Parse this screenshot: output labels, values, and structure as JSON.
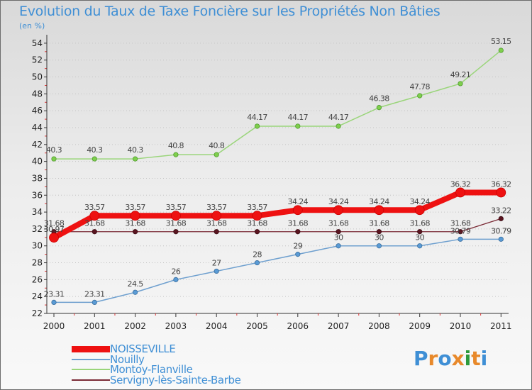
{
  "header": {
    "title": "Evolution du Taux de Taxe Foncière sur les Propriétés Non Bâties",
    "unit": "(en %)"
  },
  "logo": {
    "text": "Proxiti",
    "colors": [
      "#3f8fd5",
      "#e8892b",
      "#3f8fd5",
      "#e8892b",
      "#2e9a3c",
      "#e8892b",
      "#3f8fd5"
    ]
  },
  "chart_data": {
    "type": "line",
    "title": "Evolution du Taux de Taxe Foncière sur les Propriétés Non Bâties",
    "ylabel": "(en %)",
    "xlabel": "",
    "x": [
      "2000",
      "2001",
      "2002",
      "2003",
      "2004",
      "2005",
      "2006",
      "2007",
      "2008",
      "2009",
      "2010",
      "2011"
    ],
    "ylim": [
      22,
      55
    ],
    "yticks": [
      22,
      24,
      26,
      28,
      30,
      32,
      34,
      36,
      38,
      40,
      42,
      44,
      46,
      48,
      50,
      52,
      54
    ],
    "grid": "horizontal-dotted",
    "legend_position": "bottom-left",
    "series": [
      {
        "name": "NOISSEVILLE",
        "color": "#ee1111",
        "values": [
          30.97,
          33.57,
          33.57,
          33.57,
          33.57,
          33.57,
          34.24,
          34.24,
          34.24,
          34.24,
          36.32,
          36.32
        ],
        "labels": [
          "30.97",
          "33.57",
          "33.57",
          "33.57",
          "33.57",
          "33.57",
          "34.24",
          "34.24",
          "34.24",
          "34.24",
          "36.32",
          "36.32"
        ]
      },
      {
        "name": "Nouilly",
        "color": "#6fa0cf",
        "values": [
          23.31,
          23.31,
          24.5,
          26,
          27,
          28,
          29,
          30,
          30,
          30,
          30.79,
          30.79
        ],
        "labels": [
          "23.31",
          "23.31",
          "24.5",
          "26",
          "27",
          "28",
          "29",
          "30",
          "30",
          "30",
          "30.79",
          "30.79"
        ]
      },
      {
        "name": "Montoy-Flanville",
        "color": "#9ad57a",
        "values": [
          40.3,
          40.3,
          40.3,
          40.8,
          40.8,
          44.17,
          44.17,
          44.17,
          46.38,
          47.78,
          49.21,
          53.15
        ],
        "labels": [
          "40.3",
          "40.3",
          "40.3",
          "40.8",
          "40.8",
          "44.17",
          "44.17",
          "44.17",
          "46.38",
          "47.78",
          "49.21",
          "53.15"
        ]
      },
      {
        "name": "Servigny-lès-Sainte-Barbe",
        "color": "#7a2a35",
        "values": [
          31.68,
          31.68,
          31.68,
          31.68,
          31.68,
          31.68,
          31.68,
          31.68,
          31.68,
          31.68,
          31.68,
          33.22
        ],
        "labels": [
          "31.68",
          "31.68",
          "31.68",
          "31.68",
          "31.68",
          "31.68",
          "31.68",
          "31.68",
          "31.68",
          "31.68",
          "31.68",
          "33.22"
        ]
      }
    ]
  }
}
